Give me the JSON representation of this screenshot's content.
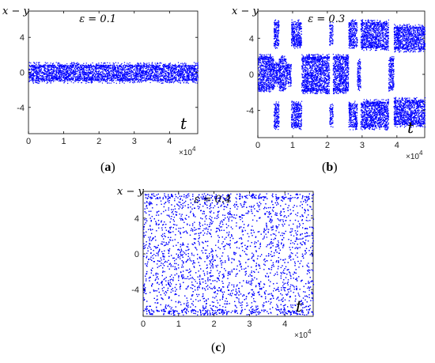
{
  "chart_data": [
    {
      "type": "scatter",
      "panel": "a",
      "caption_letter": "a",
      "title": "ε = 0.1",
      "xlabel": "t",
      "ylabel": "x − y",
      "x_multiplier": "×10",
      "x_multiplier_exp": "4",
      "xlim": [
        0,
        4.8
      ],
      "ylim": [
        -7,
        7
      ],
      "xticks": [
        0,
        1,
        2,
        3,
        4
      ],
      "yticks": [
        4,
        0,
        -4
      ],
      "marker_color": "#0000ff",
      "segments": [
        {
          "x": [
            0,
            4.8
          ],
          "bands": [
            [
              -0.9,
              0.9
            ]
          ]
        }
      ]
    },
    {
      "type": "scatter",
      "panel": "b",
      "caption_letter": "b",
      "title": "ε = 0.3",
      "xlabel": "t",
      "ylabel": "x − y",
      "x_multiplier": "×10",
      "x_multiplier_exp": "4",
      "xlim": [
        0,
        4.8
      ],
      "ylim": [
        -7,
        7
      ],
      "xticks": [
        0,
        1,
        2,
        3,
        4
      ],
      "yticks": [
        4,
        0,
        -4
      ],
      "marker_color": "#0000ff",
      "segments": [
        {
          "x": [
            0,
            0.35
          ],
          "bands": [
            [
              -1.6,
              2.0
            ]
          ]
        },
        {
          "x": [
            0.35,
            0.45
          ],
          "bands": [
            [
              -1.5,
              1.8
            ]
          ]
        },
        {
          "x": [
            0.45,
            0.6
          ],
          "bands": [
            [
              3.2,
              5.8
            ],
            [
              -5.8,
              -3.2
            ],
            [
              -1.0,
              1.2
            ]
          ]
        },
        {
          "x": [
            0.6,
            0.8
          ],
          "bands": [
            [
              -1.5,
              1.8
            ]
          ]
        },
        {
          "x": [
            0.8,
            0.95
          ],
          "bands": [
            [
              -1.0,
              1.2
            ]
          ]
        },
        {
          "x": [
            0.95,
            1.25
          ],
          "bands": [
            [
              3.2,
              5.8
            ],
            [
              -5.8,
              -3.2
            ]
          ]
        },
        {
          "x": [
            1.25,
            2.05
          ],
          "bands": [
            [
              -1.8,
              2.0
            ]
          ]
        },
        {
          "x": [
            2.05,
            2.15
          ],
          "bands": [
            [
              3.5,
              5.5
            ],
            [
              -5.5,
              -3.5
            ]
          ]
        },
        {
          "x": [
            2.15,
            2.6
          ],
          "bands": [
            [
              -1.8,
              2.0
            ]
          ]
        },
        {
          "x": [
            2.6,
            2.85
          ],
          "bands": [
            [
              3.2,
              5.8
            ],
            [
              -5.8,
              -3.2
            ]
          ]
        },
        {
          "x": [
            2.85,
            2.95
          ],
          "bands": [
            [
              -1.5,
              1.5
            ]
          ]
        },
        {
          "x": [
            2.95,
            3.75
          ],
          "bands": [
            [
              3.0,
              5.8
            ],
            [
              -5.8,
              -3.0
            ]
          ]
        },
        {
          "x": [
            3.75,
            3.9
          ],
          "bands": [
            [
              -1.5,
              1.8
            ]
          ]
        },
        {
          "x": [
            3.9,
            4.8
          ],
          "bands": [
            [
              2.8,
              5.3
            ],
            [
              -5.5,
              -2.8
            ]
          ]
        }
      ]
    },
    {
      "type": "scatter",
      "panel": "c",
      "caption_letter": "c",
      "title": "ε = 0.4",
      "xlabel": "t",
      "ylabel": "x − y",
      "x_multiplier": "×10",
      "x_multiplier_exp": "4",
      "xlim": [
        0,
        4.8
      ],
      "ylim": [
        -7,
        7
      ],
      "xticks": [
        0,
        1,
        2,
        3,
        4
      ],
      "yticks": [
        4,
        0,
        -4
      ],
      "marker_color": "#0000ff",
      "segments": [
        {
          "x": [
            0,
            4.8
          ],
          "bands": [
            [
              -6.5,
              6.5
            ]
          ],
          "striped": true
        }
      ]
    }
  ]
}
